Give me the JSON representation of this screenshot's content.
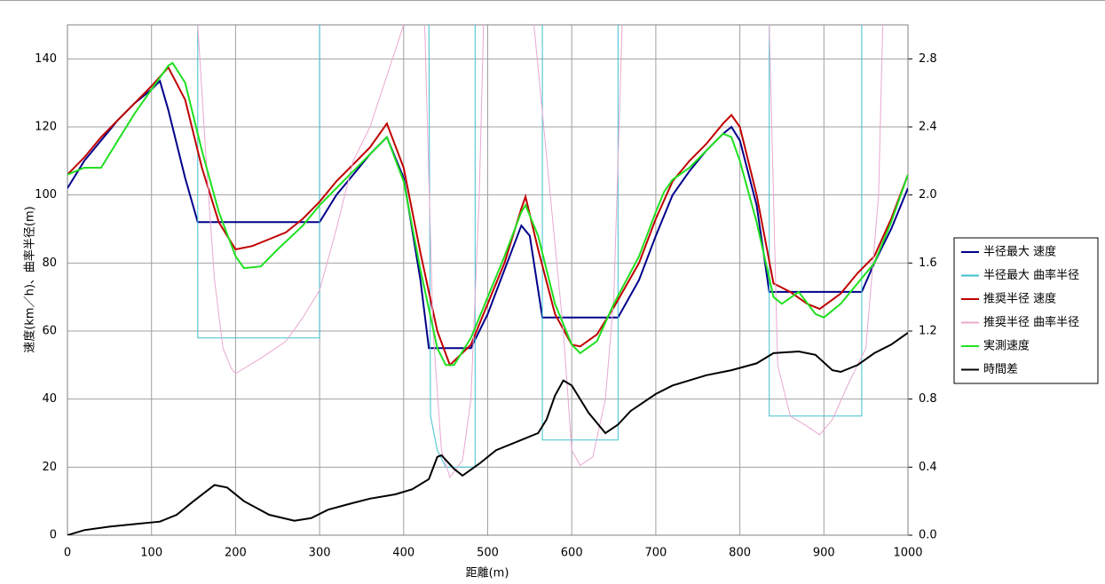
{
  "chart_data": {
    "type": "line",
    "xlabel": "距離(m)",
    "ylabel": "速度(km／h)、曲率半径(m)",
    "xlim": [
      0,
      1000
    ],
    "xticks": [
      0,
      100,
      200,
      300,
      400,
      500,
      600,
      700,
      800,
      900,
      1000
    ],
    "ylim": [
      0,
      150
    ],
    "yticks": [
      0,
      20,
      40,
      60,
      80,
      100,
      120,
      140
    ],
    "y2lim": [
      0,
      3.0
    ],
    "y2ticks": [
      {
        "value": 0,
        "label": "0.0"
      },
      0.4,
      0.8,
      1.2,
      1.6,
      {
        "value": 2,
        "label": "2.0"
      },
      2.4,
      2.8
    ],
    "grid": true,
    "legend": "right",
    "series": [
      {
        "name": "半径最大 速度",
        "color": "#00008b",
        "x": [
          0,
          20,
          40,
          60,
          80,
          100,
          110,
          120,
          140,
          155,
          200,
          250,
          300,
          320,
          340,
          360,
          380,
          400,
          420,
          430,
          480,
          500,
          520,
          540,
          550,
          565,
          600,
          640,
          655,
          680,
          700,
          720,
          740,
          760,
          780,
          790,
          800,
          820,
          835,
          900,
          945,
          960,
          980,
          1000
        ],
        "values": [
          102,
          110,
          116,
          122,
          127,
          131,
          133.5,
          125,
          105,
          92,
          92,
          92,
          92,
          100,
          106,
          112,
          117,
          105,
          75,
          55,
          55,
          65,
          78,
          91,
          88,
          64,
          64,
          64,
          64,
          75,
          88,
          100,
          107,
          113,
          118,
          120,
          116,
          97,
          71.5,
          71.5,
          71.5,
          80,
          90,
          102
        ]
      },
      {
        "name": "半径最大 曲率半径",
        "color": "#40c0d0",
        "x": [
          155,
          155,
          300,
          300,
          300,
          430,
          432,
          440,
          450,
          485,
          485,
          485,
          565,
          565,
          655,
          655,
          655,
          835,
          835,
          945,
          945
        ],
        "values": [
          150,
          58,
          58,
          150,
          null,
          150,
          35,
          25,
          20,
          20,
          150,
          null,
          150,
          28,
          28,
          150,
          null,
          150,
          35,
          35,
          150
        ]
      },
      {
        "name": "推奨半径 速度",
        "color": "#c00000",
        "x": [
          0,
          20,
          40,
          60,
          80,
          100,
          120,
          140,
          160,
          180,
          200,
          220,
          240,
          260,
          280,
          300,
          320,
          340,
          360,
          380,
          400,
          420,
          440,
          455,
          480,
          500,
          520,
          540,
          545,
          560,
          580,
          600,
          610,
          630,
          650,
          680,
          700,
          720,
          740,
          760,
          780,
          790,
          800,
          820,
          840,
          860,
          880,
          895,
          920,
          940,
          960,
          980,
          1000
        ],
        "values": [
          106,
          111,
          117,
          122,
          127,
          132,
          137.5,
          128,
          108,
          92,
          84,
          85,
          87,
          89,
          93,
          98,
          104,
          109,
          114,
          121,
          108,
          83,
          60,
          50,
          56,
          68,
          80,
          96,
          99.5,
          84,
          65,
          56,
          55.5,
          59,
          67,
          80,
          93,
          104,
          110,
          115,
          121,
          123.5,
          120,
          100,
          74,
          71.5,
          68,
          66.5,
          71,
          77,
          82,
          93,
          106
        ]
      },
      {
        "name": "推奨半径 曲率半径",
        "color": "#e8a8d0",
        "x": [
          155,
          165,
          175,
          185,
          195,
          200,
          230,
          260,
          280,
          300,
          320,
          340,
          360,
          380,
          400,
          400,
          425,
          435,
          445,
          455,
          470,
          480,
          490,
          495,
          495,
          555,
          590,
          600,
          610,
          625,
          640,
          650,
          660,
          660,
          835,
          845,
          860,
          880,
          895,
          910,
          930,
          950,
          965,
          970
        ],
        "values": [
          150,
          110,
          75,
          55,
          49,
          47.5,
          52,
          57,
          64,
          72,
          90,
          110,
          120,
          135,
          150,
          null,
          150,
          60,
          25,
          17,
          22,
          40,
          100,
          150,
          null,
          150,
          60,
          25,
          20.5,
          23,
          40,
          70,
          150,
          null,
          150,
          50,
          35,
          32,
          29.5,
          34,
          45,
          55,
          100,
          150
        ]
      },
      {
        "name": "実測速度",
        "color": "#20e020",
        "x": [
          0,
          20,
          40,
          60,
          80,
          100,
          120,
          125,
          140,
          160,
          180,
          200,
          210,
          230,
          250,
          280,
          300,
          320,
          340,
          360,
          380,
          400,
          420,
          440,
          450,
          460,
          480,
          500,
          520,
          540,
          545,
          560,
          580,
          600,
          610,
          630,
          650,
          680,
          700,
          710,
          720,
          740,
          760,
          780,
          790,
          800,
          820,
          840,
          850,
          870,
          890,
          900,
          920,
          940,
          960,
          980,
          1000
        ],
        "values": [
          106,
          108,
          108,
          116,
          124,
          131,
          138,
          138.8,
          133,
          113,
          95,
          82,
          78.5,
          79,
          84,
          91,
          97,
          102,
          107,
          112,
          117,
          104,
          78,
          55,
          50,
          50,
          58,
          70,
          82,
          95,
          97,
          88,
          68,
          56,
          53.5,
          57,
          68,
          82,
          95,
          101,
          104.5,
          108,
          113,
          118,
          117,
          110,
          92,
          70,
          68,
          71.5,
          65,
          64,
          68,
          74,
          80,
          92,
          106
        ]
      },
      {
        "name": "時間差",
        "color": "#000000",
        "axis": "y2",
        "x": [
          0,
          20,
          50,
          80,
          110,
          130,
          150,
          175,
          190,
          210,
          240,
          270,
          290,
          310,
          340,
          360,
          390,
          410,
          430,
          440,
          445,
          460,
          470,
          490,
          510,
          540,
          560,
          570,
          580,
          590,
          600,
          620,
          640,
          655,
          670,
          700,
          720,
          740,
          760,
          790,
          820,
          840,
          870,
          890,
          910,
          920,
          940,
          960,
          980,
          1000
        ],
        "values": [
          0,
          0.03,
          0.05,
          0.065,
          0.08,
          0.12,
          0.2,
          0.295,
          0.28,
          0.2,
          0.12,
          0.085,
          0.1,
          0.15,
          0.19,
          0.215,
          0.24,
          0.27,
          0.33,
          0.46,
          0.47,
          0.39,
          0.35,
          0.42,
          0.5,
          0.56,
          0.6,
          0.68,
          0.82,
          0.91,
          0.88,
          0.72,
          0.6,
          0.65,
          0.73,
          0.83,
          0.88,
          0.91,
          0.94,
          0.97,
          1.01,
          1.07,
          1.08,
          1.06,
          0.97,
          0.96,
          1.0,
          1.07,
          1.12,
          1.19
        ]
      }
    ]
  }
}
